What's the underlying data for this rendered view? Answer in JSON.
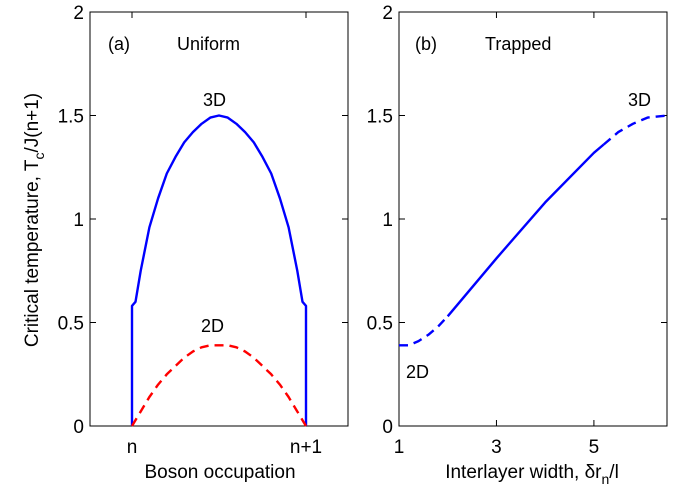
{
  "chart_data": [
    {
      "type": "line",
      "panel_label": "(a)",
      "title": "Uniform",
      "xlabel": "Boson occupation",
      "ylabel": "Critical temperature, T",
      "ylabel_sub": "c",
      "ylabel_tail": "/J(n+1)",
      "xlim": [
        0,
        1
      ],
      "ylim": [
        0,
        2
      ],
      "x_ticks": [
        {
          "value": 0,
          "label": "n"
        },
        {
          "value": 1,
          "label": "n+1"
        }
      ],
      "y_ticks": [
        {
          "value": 0,
          "label": "0"
        },
        {
          "value": 0.5,
          "label": "0.5"
        },
        {
          "value": 1,
          "label": "1"
        },
        {
          "value": 1.5,
          "label": "1.5"
        },
        {
          "value": 2,
          "label": "2"
        }
      ],
      "annotations": [
        {
          "text": "3D",
          "x": 0.5,
          "y": 1.5
        },
        {
          "text": "2D",
          "x": 0.5,
          "y": 0.39
        }
      ],
      "series": [
        {
          "color": "#0000ff",
          "style": "solid",
          "x": [
            0,
            0,
            0.02,
            0.05,
            0.1,
            0.15,
            0.2,
            0.25,
            0.3,
            0.35,
            0.4,
            0.45,
            0.5,
            0.55,
            0.6,
            0.65,
            0.7,
            0.75,
            0.8,
            0.85,
            0.9,
            0.95,
            0.98,
            1,
            1
          ],
          "y": [
            0,
            0.58,
            0.6,
            0.75,
            0.96,
            1.1,
            1.22,
            1.3,
            1.37,
            1.42,
            1.46,
            1.49,
            1.5,
            1.49,
            1.46,
            1.42,
            1.37,
            1.3,
            1.22,
            1.1,
            0.96,
            0.75,
            0.6,
            0.58,
            0
          ]
        },
        {
          "color": "#ff0000",
          "style": "dashed",
          "x": [
            0,
            0.05,
            0.1,
            0.15,
            0.2,
            0.25,
            0.3,
            0.35,
            0.4,
            0.45,
            0.5,
            0.55,
            0.6,
            0.65,
            0.7,
            0.75,
            0.8,
            0.85,
            0.9,
            0.95,
            1
          ],
          "y": [
            0,
            0.07,
            0.14,
            0.2,
            0.25,
            0.29,
            0.33,
            0.36,
            0.38,
            0.39,
            0.39,
            0.39,
            0.38,
            0.36,
            0.33,
            0.29,
            0.25,
            0.2,
            0.14,
            0.07,
            0
          ]
        }
      ]
    },
    {
      "type": "line",
      "panel_label": "(b)",
      "title": "Trapped",
      "xlabel": "Interlayer width, δr",
      "xlabel_sub": "n",
      "xlabel_tail": "/l",
      "xlim": [
        1,
        6.5
      ],
      "ylim": [
        0,
        2
      ],
      "x_ticks": [
        {
          "value": 1,
          "label": "1"
        },
        {
          "value": 3,
          "label": "3"
        },
        {
          "value": 5,
          "label": "5"
        }
      ],
      "y_ticks": [
        {
          "value": 0,
          "label": "0"
        },
        {
          "value": 0.5,
          "label": "0.5"
        },
        {
          "value": 1,
          "label": "1"
        },
        {
          "value": 1.5,
          "label": "1.5"
        },
        {
          "value": 2,
          "label": "2"
        }
      ],
      "annotations": [
        {
          "text": "3D",
          "x": 6.2,
          "y": 1.5
        },
        {
          "text": "2D",
          "x": 1.5,
          "y": 0.39
        }
      ],
      "series": [
        {
          "color": "#0000ff",
          "style": "dashed",
          "x": [
            1,
            1.2,
            1.4,
            1.6,
            1.8,
            2
          ],
          "y": [
            0.39,
            0.39,
            0.41,
            0.44,
            0.48,
            0.53
          ]
        },
        {
          "color": "#0000ff",
          "style": "solid",
          "x": [
            2,
            3,
            4,
            5,
            5.2
          ],
          "y": [
            0.53,
            0.81,
            1.08,
            1.32,
            1.36
          ]
        },
        {
          "color": "#0000ff",
          "style": "dashed",
          "x": [
            5.2,
            5.5,
            5.8,
            6.1,
            6.5
          ],
          "y": [
            1.36,
            1.42,
            1.46,
            1.49,
            1.5
          ]
        }
      ]
    }
  ]
}
